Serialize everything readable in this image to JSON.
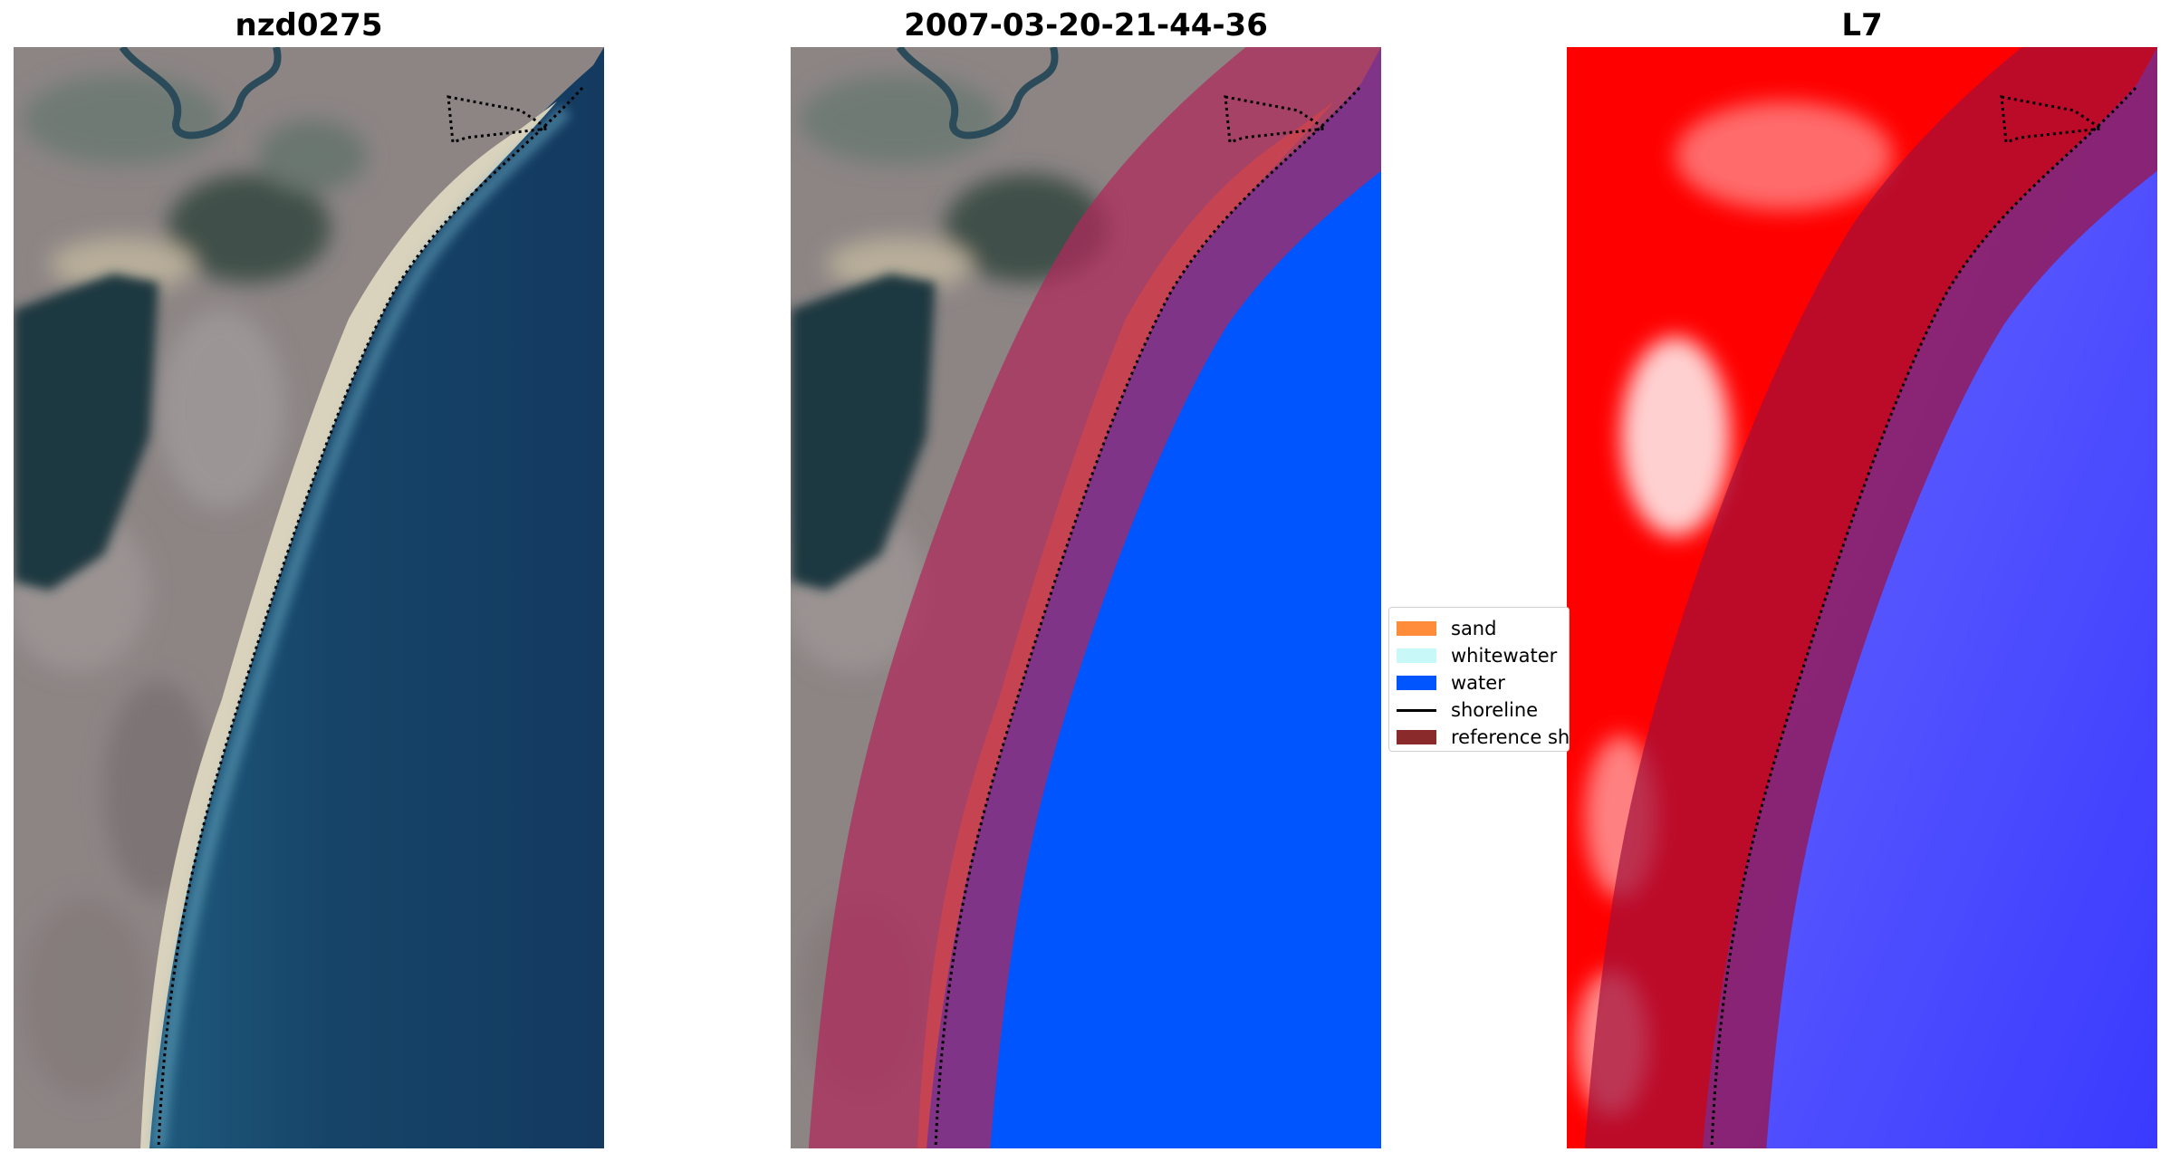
{
  "panels": [
    {
      "title": "nzd0275"
    },
    {
      "title": "2007-03-20-21-44-36"
    },
    {
      "title": "L7"
    }
  ],
  "legend": {
    "items": [
      {
        "label": "sand",
        "kind": "patch",
        "color": "#ff8c3a"
      },
      {
        "label": "whitewater",
        "kind": "patch",
        "color": "#c8f8f8"
      },
      {
        "label": "water",
        "kind": "patch",
        "color": "#0055ff"
      },
      {
        "label": "shoreline",
        "kind": "line",
        "color": "#000000"
      },
      {
        "label": "reference sh",
        "kind": "patch",
        "color": "#8b2a2a"
      }
    ]
  },
  "colors": {
    "ocean": "#163f66",
    "land": "#8a8382",
    "sand": "#ff8c3a",
    "water_class": "#0055ff",
    "buffer": "#b22a55",
    "index_land": "#ff0000",
    "index_water": "#4f4fff"
  }
}
